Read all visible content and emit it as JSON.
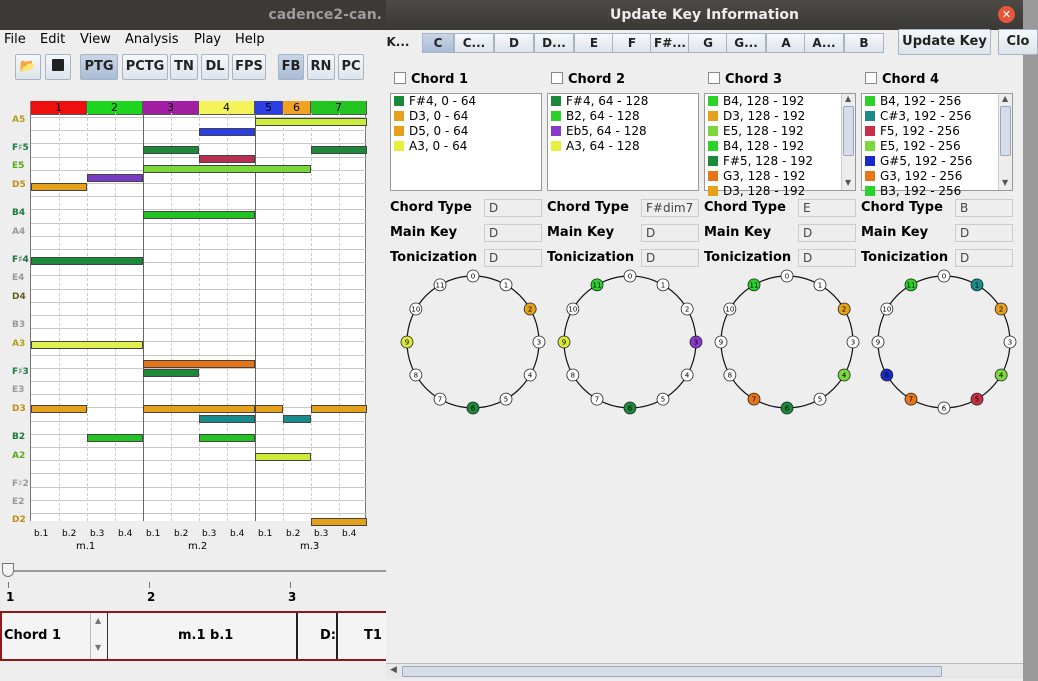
{
  "main_title": "cadence2-can.",
  "menu": [
    "File",
    "Edit",
    "View",
    "Analysis",
    "Play",
    "Help"
  ],
  "toolbar": {
    "buttons": [
      "PTG",
      "PCTG",
      "TN",
      "DL",
      "FPS",
      "FB",
      "RN",
      "PC"
    ],
    "selected": [
      "PTG",
      "FB"
    ]
  },
  "roll": {
    "chords": [
      {
        "label": "1",
        "color": "#ee0f0f"
      },
      {
        "label": "2",
        "color": "#1ed51e"
      },
      {
        "label": "3",
        "color": "#a21ea2"
      },
      {
        "label": "4",
        "color": "#f4f45a"
      },
      {
        "label": "5",
        "color": "#2b3ee6"
      },
      {
        "label": "6",
        "color": "#f1a123"
      },
      {
        "label": "7",
        "color": "#22c422"
      }
    ],
    "pitches": [
      {
        "name": "A5",
        "color": "#b59d17"
      },
      {
        "name": "F♯5",
        "color": "#1a7a3a"
      },
      {
        "name": "E5",
        "color": "#5aa81a"
      },
      {
        "name": "D5",
        "color": "#c18e13"
      },
      {
        "name": "B4",
        "color": "#1a7a3a"
      },
      {
        "name": "A4",
        "color": "#999999"
      },
      {
        "name": "F♯4",
        "color": "#1a6d34"
      },
      {
        "name": "E4",
        "color": "#999999"
      },
      {
        "name": "D4",
        "color": "#6a5a1a"
      },
      {
        "name": "B3",
        "color": "#999999"
      },
      {
        "name": "A3",
        "color": "#b59d17"
      },
      {
        "name": "F♯3",
        "color": "#1a7a3a"
      },
      {
        "name": "E3",
        "color": "#999999"
      },
      {
        "name": "D3",
        "color": "#c18e13"
      },
      {
        "name": "B2",
        "color": "#1a7a3a"
      },
      {
        "name": "A2",
        "color": "#5aa81a"
      },
      {
        "name": "F♯2",
        "color": "#999999"
      },
      {
        "name": "E2",
        "color": "#999999"
      },
      {
        "name": "D2",
        "color": "#c18e13"
      }
    ],
    "beats": [
      "b.1",
      "b.2",
      "b.3",
      "b.4",
      "b.1",
      "b.2",
      "b.3",
      "b.4",
      "b.1",
      "b.2",
      "b.3",
      "b.4"
    ],
    "measures": [
      "m.1",
      "m.2",
      "m.3"
    ]
  },
  "slider": {
    "ticks": [
      "1",
      "2",
      "3"
    ]
  },
  "bottom": {
    "chord": "Chord 1",
    "position": "m.1 b.1",
    "key": "D:",
    "numeral": "T1"
  },
  "dialog": {
    "title": "Update Key Information",
    "keys": [
      "K...",
      "C",
      "C...",
      "D",
      "D...",
      "E",
      "F",
      "F#...",
      "G",
      "G...",
      "A",
      "A...",
      "B"
    ],
    "selected_key": "C",
    "update_button": "Update Key",
    "close_button": "Clo",
    "field_labels": {
      "chord_type": "Chord Type",
      "main_key": "Main Key",
      "tonicization": "Tonicization"
    },
    "chords": [
      {
        "title": "Chord 1",
        "notes": [
          {
            "text": "F#4, 0 - 64",
            "color": "#1a8a3a"
          },
          {
            "text": "D3, 0 - 64",
            "color": "#e6a11a"
          },
          {
            "text": "D5, 0 - 64",
            "color": "#e6a11a"
          },
          {
            "text": "A3, 0 - 64",
            "color": "#e6f03c"
          }
        ],
        "chord_type": "D",
        "main_key": "D",
        "tonicization": "D",
        "scroll": false,
        "wheel": {
          "9": "#dbe83a",
          "6": "#1a8a3a",
          "2": "#e6a11a"
        }
      },
      {
        "title": "Chord 2",
        "notes": [
          {
            "text": "F#4, 64 - 128",
            "color": "#1a8a3a"
          },
          {
            "text": "B2, 64 - 128",
            "color": "#2ad22a"
          },
          {
            "text": "Eb5, 64 - 128",
            "color": "#8a3ac8"
          },
          {
            "text": "A3, 64 - 128",
            "color": "#e6f03c"
          }
        ],
        "chord_type": "F#dim7",
        "main_key": "D",
        "tonicization": "D",
        "scroll": false,
        "wheel": {
          "11": "#2ad22a",
          "9": "#dbe83a",
          "3": "#8a3ac8",
          "6": "#1a8a3a"
        }
      },
      {
        "title": "Chord 3",
        "notes": [
          {
            "text": "B4, 128 - 192",
            "color": "#2ad22a"
          },
          {
            "text": "D3, 128 - 192",
            "color": "#e6a11a"
          },
          {
            "text": "E5, 128 - 192",
            "color": "#7ad83a"
          },
          {
            "text": "B4, 128 - 192",
            "color": "#2ad22a"
          },
          {
            "text": "F#5, 128 - 192",
            "color": "#1a8a3a"
          },
          {
            "text": "G3, 128 - 192",
            "color": "#e87418"
          },
          {
            "text": "D3, 128 - 192",
            "color": "#e6a11a"
          }
        ],
        "chord_type": "E",
        "main_key": "D",
        "tonicization": "D",
        "scroll": true,
        "wheel": {
          "11": "#2ad22a",
          "2": "#e6a11a",
          "4": "#7ad83a",
          "6": "#1a8a3a",
          "7": "#e87418"
        }
      },
      {
        "title": "Chord 4",
        "notes": [
          {
            "text": "B4, 192 - 256",
            "color": "#2ad22a"
          },
          {
            "text": "C#3, 192 - 256",
            "color": "#1a8a8a"
          },
          {
            "text": "F5, 192 - 256",
            "color": "#c8304a"
          },
          {
            "text": "E5, 192 - 256",
            "color": "#7ad83a"
          },
          {
            "text": "G#5, 192 - 256",
            "color": "#1a2ac8"
          },
          {
            "text": "G3, 192 - 256",
            "color": "#e87418"
          },
          {
            "text": "B3, 192 - 256",
            "color": "#2ad22a"
          }
        ],
        "chord_type": "B",
        "main_key": "D",
        "tonicization": "D",
        "scroll": true,
        "wheel": {
          "11": "#2ad22a",
          "1": "#1a8a8a",
          "2": "#e6a11a",
          "4": "#7ad83a",
          "5": "#c8304a",
          "7": "#e87418",
          "8": "#1a2ac8"
        }
      }
    ]
  }
}
